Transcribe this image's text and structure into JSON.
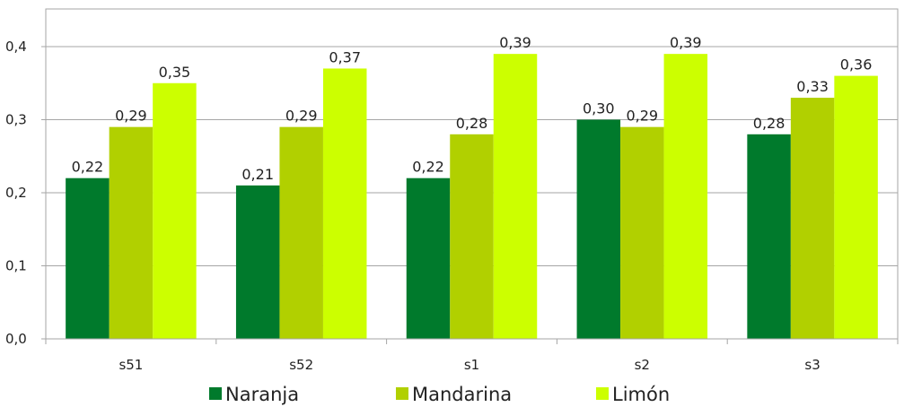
{
  "chart_data": {
    "type": "bar",
    "title": "",
    "xlabel": "",
    "ylabel": "",
    "categories": [
      "s51",
      "s52",
      "s1",
      "s2",
      "s3"
    ],
    "series": [
      {
        "name": "Naranja",
        "color": "#007a2c",
        "values": [
          0.22,
          0.21,
          0.22,
          0.3,
          0.28
        ],
        "labels": [
          "0,22",
          "0,21",
          "0,22",
          "0,30",
          "0,28"
        ]
      },
      {
        "name": "Mandarina",
        "color": "#b1d000",
        "values": [
          0.29,
          0.29,
          0.28,
          0.29,
          0.33
        ],
        "labels": [
          "0,29",
          "0,29",
          "0,28",
          "0,29",
          "0,33"
        ]
      },
      {
        "name": "Limón",
        "color": "#ccff00",
        "values": [
          0.35,
          0.37,
          0.39,
          0.39,
          0.36
        ],
        "labels": [
          "0,35",
          "0,37",
          "0,39",
          "0,39",
          "0,36"
        ]
      }
    ],
    "ylim": [
      0,
      0.4
    ],
    "yticks": [
      0,
      0.1,
      0.2,
      0.3,
      0.4
    ],
    "ytick_labels": [
      "0,0",
      "0,1",
      "0,2",
      "0,3",
      "0,4"
    ],
    "grid": true,
    "legend_position": "bottom"
  }
}
